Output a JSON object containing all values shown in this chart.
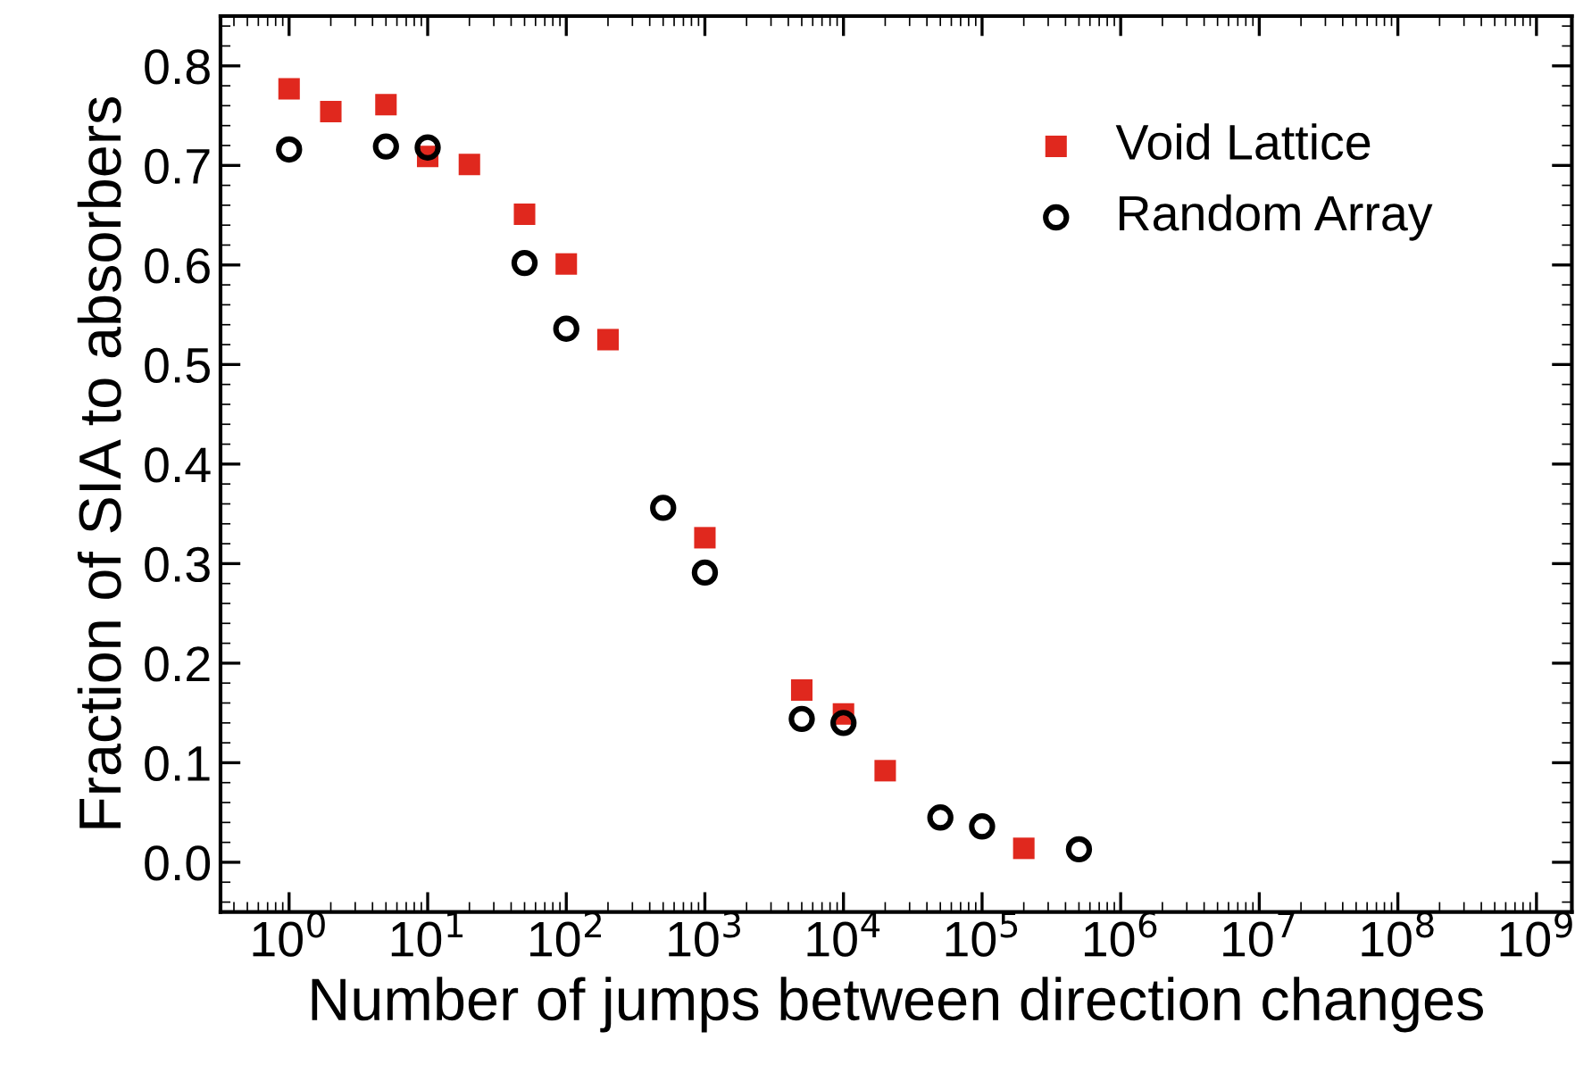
{
  "chart_data": {
    "type": "scatter",
    "xlabel": "Number of jumps between direction changes",
    "ylabel": "Fraction of SIA to absorbers",
    "log": "x",
    "xlim": [
      0.32,
      1800000000.0
    ],
    "ylim": [
      -0.05,
      0.85
    ],
    "xticks": [
      {
        "value": 1,
        "label": "10$^{0}$"
      },
      {
        "value": 10,
        "label": "10$^{1}$"
      },
      {
        "value": 100,
        "label": "10$^{2}$"
      },
      {
        "value": 1000,
        "label": "10$^{3}$"
      },
      {
        "value": 10000,
        "label": "10$^{4}$"
      },
      {
        "value": 100000,
        "label": "10$^{5}$"
      },
      {
        "value": 1000000,
        "label": "10$^{6}$"
      },
      {
        "value": 10000000,
        "label": "10$^{7}$"
      },
      {
        "value": 100000000,
        "label": "10$^{8}$"
      },
      {
        "value": 1000000000,
        "label": "10$^{9}$"
      }
    ],
    "yticks": [
      {
        "value": 0,
        "label": "0.0"
      },
      0.1,
      0.2,
      0.3,
      0.4,
      0.5,
      0.6,
      0.7,
      0.8
    ],
    "legend": "top right",
    "grid": false,
    "series": [
      {
        "name": "Void Lattice",
        "color": "#e0281e",
        "marker": "square",
        "x": [
          1,
          2,
          5,
          10,
          20,
          50,
          100,
          200,
          1000,
          5000,
          10000,
          20000,
          200000
        ],
        "values": [
          0.777,
          0.754,
          0.761,
          0.709,
          0.701,
          0.651,
          0.601,
          0.525,
          0.326,
          0.173,
          0.149,
          0.092,
          0.014
        ]
      },
      {
        "name": "Random Array",
        "color": "#000000",
        "marker": "circle",
        "x": [
          1,
          5,
          10,
          50,
          100,
          500,
          1000,
          5000,
          10000,
          50000,
          100000,
          500000
        ],
        "values": [
          0.716,
          0.719,
          0.718,
          0.602,
          0.536,
          0.356,
          0.291,
          0.144,
          0.14,
          0.045,
          0.036,
          0.013
        ]
      }
    ]
  }
}
